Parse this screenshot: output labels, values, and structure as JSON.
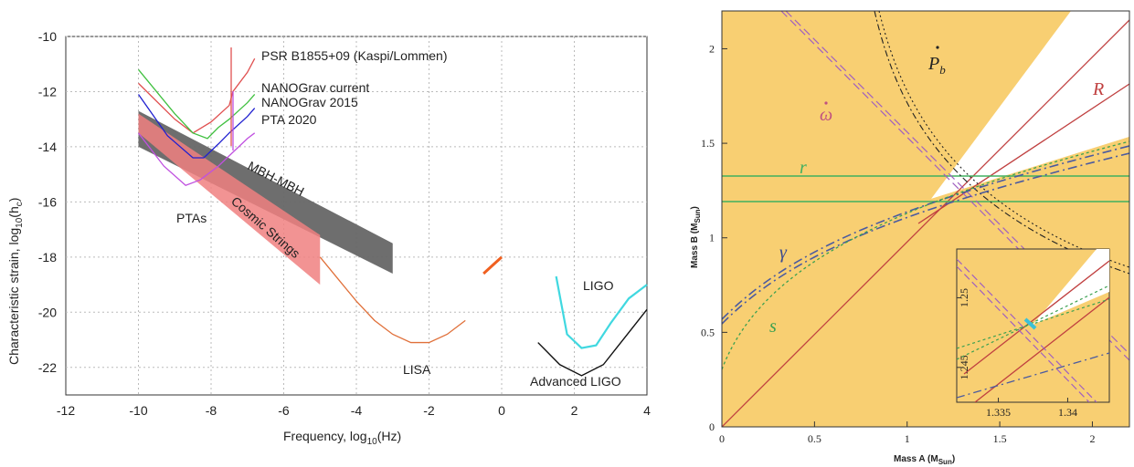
{
  "chart_data": [
    {
      "type": "line",
      "xlabel": "Frequency, log10(Hz)",
      "ylabel": "Characteristic strain, log10(hc)",
      "xlim": [
        -12,
        4
      ],
      "ylim": [
        -23,
        -10
      ],
      "x_ticks": [
        "-12",
        "-10",
        "-8",
        "-6",
        "-4",
        "-2",
        "0",
        "2",
        "4"
      ],
      "y_ticks": [
        "-10",
        "-12",
        "-14",
        "-16",
        "-18",
        "-20",
        "-22"
      ],
      "grid": true,
      "colors": {
        "psr": "#e05050",
        "nano_current": "#40c040",
        "nano_2015": "#2020d0",
        "pta2020": "#c050e0",
        "cosmic": "#f08080",
        "mbh": "#6a6a6a",
        "lisa": "#e0703a",
        "ligo": "#40d8e0",
        "adv_ligo": "#111111"
      },
      "series": [
        {
          "name": "PSR B1855+09 (Kaspi/Lommen)",
          "x": [
            -10,
            -9,
            -8.5,
            -8,
            -7.5,
            -7.4,
            -7,
            -6.8
          ],
          "y": [
            -11.7,
            -13,
            -13.5,
            -13.1,
            -12.5,
            -12,
            -11.3,
            -10.8
          ]
        },
        {
          "name": "NANOGrav current",
          "x": [
            -10,
            -9,
            -8.5,
            -8.1,
            -7.8,
            -7.5,
            -7,
            -6.8
          ],
          "y": [
            -11.2,
            -12.8,
            -13.5,
            -13.7,
            -13.3,
            -13,
            -12.4,
            -12.1
          ]
        },
        {
          "name": "NANOGrav 2015",
          "x": [
            -10,
            -9.2,
            -8.5,
            -8.2,
            -7.8,
            -7.5,
            -7,
            -6.8
          ],
          "y": [
            -12.1,
            -13.6,
            -14.4,
            -14.4,
            -13.9,
            -13.5,
            -12.9,
            -12.6
          ]
        },
        {
          "name": "PTA 2020",
          "x": [
            -10,
            -9.3,
            -8.7,
            -8.3,
            -7.8,
            -7.4,
            -7,
            -6.8
          ],
          "y": [
            -13.5,
            -14.7,
            -15.4,
            -15.2,
            -14.7,
            -14.2,
            -13.7,
            -13.5
          ]
        },
        {
          "name": "LISA",
          "x": [
            -1,
            -1.5,
            -2,
            -2.5,
            -3,
            -3.5,
            -4,
            -4.5,
            -5
          ],
          "y": [
            -20.3,
            -20.8,
            -21.1,
            -21.1,
            -20.8,
            -20.3,
            -19.6,
            -18.8,
            -18.0
          ]
        },
        {
          "name": "LIGO",
          "x": [
            1.5,
            1.8,
            2.2,
            2.6,
            3,
            3.5,
            4
          ],
          "y": [
            -18.7,
            -20.8,
            -21.3,
            -21.2,
            -20.4,
            -19.5,
            -19.0
          ]
        },
        {
          "name": "Advanced LIGO",
          "x": [
            1,
            1.6,
            2.2,
            2.8,
            3.4,
            4
          ],
          "y": [
            -21.1,
            -21.9,
            -22.3,
            -21.9,
            -20.9,
            -19.9
          ]
        }
      ],
      "bands": [
        {
          "name": "MBH-MBH",
          "x": [
            -10,
            -3
          ],
          "upper": [
            -12.7,
            -17.5
          ],
          "lower": [
            -14.0,
            -18.6
          ]
        },
        {
          "name": "Cosmic Strings",
          "x": [
            -10,
            -5
          ],
          "upper": [
            -12.8,
            -17.2
          ],
          "lower": [
            -13.5,
            -19.0
          ]
        }
      ],
      "annotations": [
        "PSR B1855+09 (Kaspi/Lommen)",
        "NANOGrav current",
        "NANOGrav 2015",
        "PTA 2020",
        "PTAs",
        "MBH-MBH",
        "Cosmic Strings",
        "LISA",
        "LIGO",
        "Advanced LIGO"
      ]
    },
    {
      "type": "line",
      "xlabel": "Mass A (MSun)",
      "ylabel": "Mass B (MSun)",
      "xlim": [
        0,
        2.2
      ],
      "ylim": [
        0,
        2.2
      ],
      "x_ticks": [
        "0",
        "0.5",
        "1",
        "1.5",
        "2"
      ],
      "y_ticks": [
        "0",
        "0.5",
        "1",
        "1.5",
        "2"
      ],
      "grid": false,
      "series_labels": [
        "ω̇",
        "Ṗb",
        "R",
        "r",
        "γ",
        "s"
      ],
      "colors": {
        "allowed_region": "#f8cf72",
        "R": "#c04040",
        "r": "#40b060",
        "omega": "#a060c0",
        "Pb": "#222222",
        "gamma": "#4a5aa0",
        "s": "#3aa050",
        "marker": "#3ac0d8"
      },
      "inset": {
        "xlim": [
          1.332,
          1.343
        ],
        "ylim": [
          1.2425,
          1.2535
        ],
        "x_ticks": [
          "1.335",
          "1.34"
        ],
        "y_ticks": [
          "1.245",
          "1.25"
        ]
      }
    }
  ],
  "left_axis": {
    "x_ticks": [
      "-12",
      "-10",
      "-8",
      "-6",
      "-4",
      "-2",
      "0",
      "2",
      "4"
    ],
    "y_ticks": [
      "-10",
      "-12",
      "-14",
      "-16",
      "-18",
      "-20",
      "-22"
    ]
  },
  "left_labels": {
    "xlabel_pre": "Frequency, log",
    "xlabel_sub": "10",
    "xlabel_post": "(Hz)",
    "ylabel_pre": "Characteristic strain, log",
    "ylabel_sub": "10",
    "ylabel_post": "(h",
    "ylabel_sub2": "c",
    "ylabel_end": ")",
    "psr": "PSR B1855+09 (Kaspi/Lommen)",
    "nano_current": "NANOGrav current",
    "nano_2015": "NANOGrav 2015",
    "pta2020": "PTA 2020",
    "ptas": "PTAs",
    "mbh": "MBH-MBH",
    "cosmic": "Cosmic Strings",
    "lisa": "LISA",
    "ligo": "LIGO",
    "adv_ligo": "Advanced LIGO"
  },
  "right_axis": {
    "x_ticks": [
      "0",
      "0.5",
      "1",
      "1.5",
      "2"
    ],
    "y_ticks": [
      "0",
      "0.5",
      "1",
      "1.5",
      "2"
    ],
    "inset_x_ticks": [
      "1.335",
      "1.34"
    ],
    "inset_y_ticks": [
      "1.245",
      "1.25"
    ]
  },
  "right_labels": {
    "xlabel_pre": "Mass A (M",
    "xlabel_sub": "Sun",
    "xlabel_post": ")",
    "ylabel_pre": "Mass B (M",
    "ylabel_sub": "Sun",
    "ylabel_post": ")",
    "omega": "ω",
    "pb": "P",
    "pb_sub": "b",
    "R": "R",
    "r": "r",
    "gamma": "γ",
    "s": "s"
  }
}
